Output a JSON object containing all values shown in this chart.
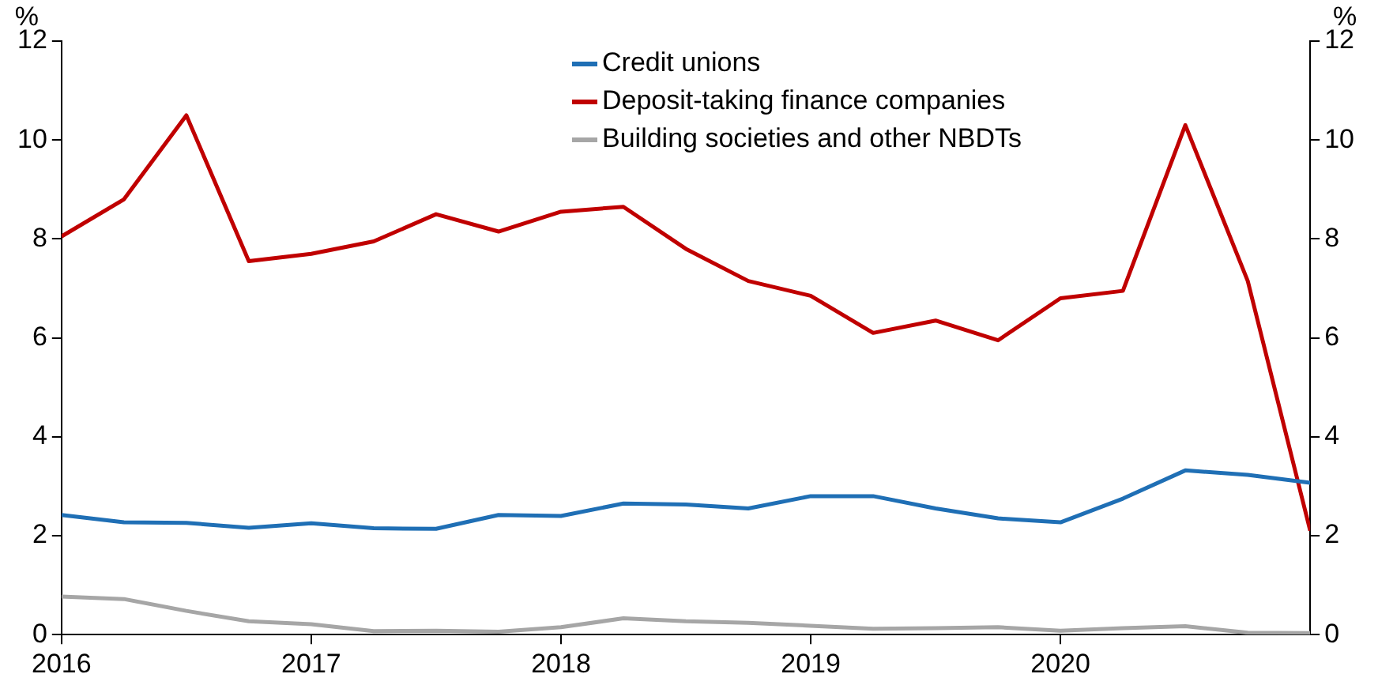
{
  "chart_data": {
    "type": "line",
    "ylabel": "%",
    "y2label": "%",
    "x": [
      2016,
      2016.25,
      2016.5,
      2016.75,
      2017,
      2017.25,
      2017.5,
      2017.75,
      2018,
      2018.25,
      2018.5,
      2018.75,
      2019,
      2019.25,
      2019.5,
      2019.75,
      2020,
      2020.25,
      2020.5,
      2020.75,
      2021
    ],
    "series": [
      {
        "name": "Credit unions",
        "color": "#1f6fb5",
        "values": [
          2.42,
          2.27,
          2.26,
          2.16,
          2.25,
          2.15,
          2.14,
          2.42,
          2.4,
          2.65,
          2.63,
          2.55,
          2.8,
          2.8,
          2.55,
          2.35,
          2.27,
          2.75,
          3.32,
          3.23,
          3.07
        ]
      },
      {
        "name": "Deposit-taking finance companies",
        "color": "#c00000",
        "values": [
          8.05,
          8.8,
          10.5,
          7.55,
          7.7,
          7.95,
          8.5,
          8.15,
          8.55,
          8.65,
          7.8,
          7.15,
          6.85,
          6.1,
          6.35,
          5.95,
          6.8,
          6.95,
          10.3,
          7.15,
          2.1
        ]
      },
      {
        "name": "Building societies and other NBDTs",
        "color": "#a6a6a6",
        "values": [
          0.77,
          0.72,
          0.48,
          0.27,
          0.21,
          0.07,
          0.08,
          0.06,
          0.15,
          0.33,
          0.27,
          0.24,
          0.18,
          0.12,
          0.13,
          0.15,
          0.08,
          0.13,
          0.17,
          0.04,
          0.03
        ]
      }
    ],
    "xlim": [
      2016,
      2021
    ],
    "xticks": [
      2016,
      2017,
      2018,
      2019,
      2020
    ],
    "ylim": [
      0,
      12
    ],
    "yticks": [
      0,
      2,
      4,
      6,
      8,
      10,
      12
    ],
    "y2lim": [
      0,
      12
    ],
    "y2ticks": [
      0,
      2,
      4,
      6,
      8,
      10,
      12
    ],
    "grid": false,
    "legend": "top",
    "marker": "none",
    "line_style": "solid"
  }
}
